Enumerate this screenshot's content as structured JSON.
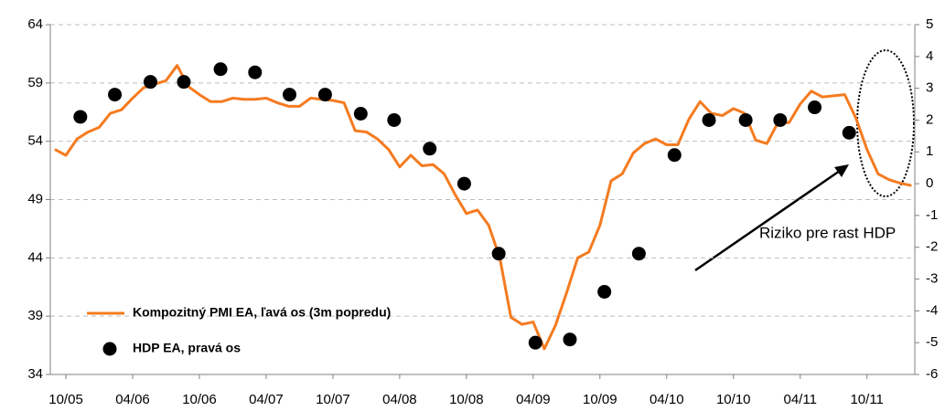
{
  "chart_data": {
    "type": "line",
    "annotation": "Riziko pre rast HDP",
    "xlim": [
      -1.4,
      76.3
    ],
    "xticks": [
      {
        "value": 0,
        "label": "10/05"
      },
      {
        "value": 6,
        "label": "04/06"
      },
      {
        "value": 12,
        "label": "10/06"
      },
      {
        "value": 18,
        "label": "04/07"
      },
      {
        "value": 24,
        "label": "10/07"
      },
      {
        "value": 30,
        "label": "04/08"
      },
      {
        "value": 36,
        "label": "10/08"
      },
      {
        "value": 42,
        "label": "04/09"
      },
      {
        "value": 48,
        "label": "10/09"
      },
      {
        "value": 54,
        "label": "04/10"
      },
      {
        "value": 60,
        "label": "10/10"
      },
      {
        "value": 66,
        "label": "04/11"
      },
      {
        "value": 72,
        "label": "10/11"
      }
    ],
    "ylim": [
      34,
      64
    ],
    "yticks": [
      34,
      39,
      44,
      49,
      54,
      59,
      64
    ],
    "y2lim": [
      -6,
      5
    ],
    "y2ticks": [
      -6,
      -5,
      -4,
      -3,
      -2,
      -1,
      0,
      1,
      2,
      3,
      4,
      5
    ],
    "grid": true,
    "series": [
      {
        "name": "Kompozitný PMI EA, ľavá os (3m popredu)",
        "type": "line",
        "color": "#f47b20",
        "axis": "y",
        "x": [
          -1,
          0,
          1,
          2,
          3,
          4,
          5,
          6,
          7,
          8,
          9,
          10,
          11,
          12,
          13,
          14,
          15,
          16,
          17,
          18,
          19,
          20,
          21,
          22,
          23,
          24,
          25,
          26,
          27,
          28,
          29,
          30,
          31,
          32,
          33,
          34,
          35,
          36,
          37,
          38,
          39,
          40,
          41,
          42,
          43,
          44,
          45,
          46,
          47,
          48,
          49,
          50,
          51,
          52,
          53,
          54,
          55,
          56,
          57,
          58,
          59,
          60,
          61,
          62,
          63,
          64,
          65,
          66,
          67,
          68,
          69,
          70,
          71,
          72,
          73,
          74,
          75,
          76
        ],
        "values": [
          53.3,
          52.8,
          54.2,
          54.8,
          55.2,
          56.4,
          56.7,
          57.7,
          58.6,
          58.9,
          59.2,
          60.5,
          58.7,
          58.0,
          57.4,
          57.4,
          57.7,
          57.6,
          57.6,
          57.7,
          57.3,
          57.0,
          57.0,
          57.7,
          57.6,
          57.5,
          57.3,
          54.9,
          54.8,
          54.2,
          53.3,
          51.8,
          52.8,
          51.9,
          52.0,
          51.2,
          49.4,
          47.8,
          48.1,
          46.8,
          44.0,
          38.9,
          38.3,
          38.5,
          36.2,
          38.2,
          41.0,
          44.0,
          44.5,
          46.8,
          50.6,
          51.2,
          53.0,
          53.8,
          54.2,
          53.7,
          53.7,
          55.9,
          57.4,
          56.4,
          56.2,
          56.8,
          56.4,
          54.1,
          53.8,
          55.6,
          55.6,
          57.2,
          58.3,
          57.8,
          57.9,
          58.0,
          56.0,
          53.3,
          51.2,
          50.7,
          50.4,
          50.2
        ]
      },
      {
        "name": "HDP EA, pravá os",
        "type": "scatter",
        "color": "#000000",
        "axis": "y2",
        "x": [
          1.3,
          4.4,
          7.6,
          10.6,
          13.9,
          17.0,
          20.1,
          23.3,
          26.5,
          29.5,
          32.7,
          35.8,
          38.9,
          42.2,
          45.3,
          48.4,
          51.5,
          54.7,
          57.8,
          61.1,
          64.2,
          67.3,
          70.4
        ],
        "values": [
          2.1,
          2.8,
          3.2,
          3.2,
          3.6,
          3.5,
          2.8,
          2.8,
          2.2,
          2.0,
          1.1,
          0.0,
          -2.2,
          -5.0,
          -4.9,
          -3.4,
          -2.2,
          0.9,
          2.0,
          2.0,
          2.0,
          2.4,
          1.6
        ]
      }
    ]
  }
}
